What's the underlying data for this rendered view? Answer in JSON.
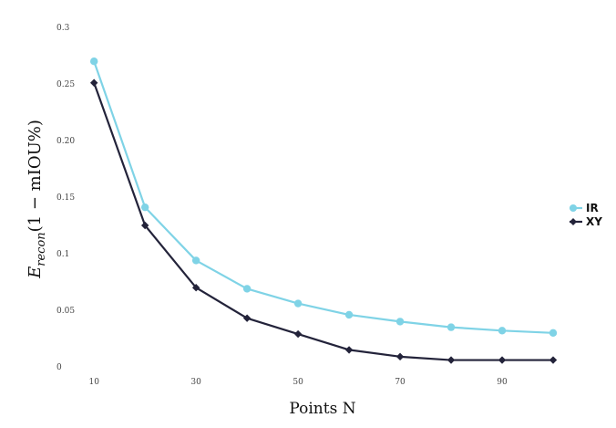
{
  "chart_data": {
    "type": "line",
    "title": "",
    "xlabel": "Points N",
    "ylabel": "E_recon(1 − mIOU%)",
    "ylabel_parts": {
      "base": "E",
      "sub": "recon",
      "rest": "(1 − mIOU%)"
    },
    "x": [
      10,
      20,
      30,
      40,
      50,
      60,
      70,
      80,
      90,
      100
    ],
    "xlim": [
      8,
      100
    ],
    "ylim": [
      0,
      0.3
    ],
    "xticks": [
      10,
      30,
      50,
      70,
      90
    ],
    "xtick_labels": [
      "10",
      "30",
      "50",
      "70",
      "90"
    ],
    "yticks": [
      0,
      0.05,
      0.1,
      0.15,
      0.2,
      0.25,
      0.3
    ],
    "ytick_labels": [
      "0",
      "0.05",
      "0.1",
      "0.15",
      "0.20",
      "0.25",
      "0.3"
    ],
    "grid": false,
    "legend_position": "right",
    "series": [
      {
        "name": "IR",
        "color": "#7fd3e6",
        "marker": "circle",
        "values": [
          0.27,
          0.141,
          0.094,
          0.069,
          0.056,
          0.046,
          0.04,
          0.035,
          0.032,
          0.03
        ]
      },
      {
        "name": "XY",
        "color": "#23233a",
        "marker": "diamond",
        "values": [
          0.251,
          0.125,
          0.07,
          0.043,
          0.029,
          0.015,
          0.009,
          0.006,
          0.006,
          0.006
        ]
      }
    ]
  }
}
